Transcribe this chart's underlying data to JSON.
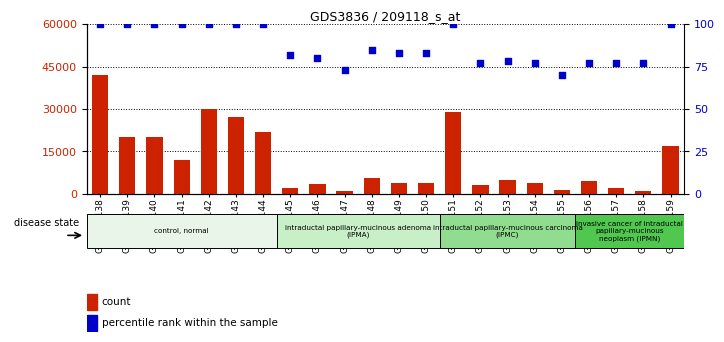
{
  "title": "GDS3836 / 209118_s_at",
  "samples": [
    "GSM490138",
    "GSM490139",
    "GSM490140",
    "GSM490141",
    "GSM490142",
    "GSM490143",
    "GSM490144",
    "GSM490145",
    "GSM490146",
    "GSM490147",
    "GSM490148",
    "GSM490149",
    "GSM490150",
    "GSM490151",
    "GSM490152",
    "GSM490153",
    "GSM490154",
    "GSM490155",
    "GSM490156",
    "GSM490157",
    "GSM490158",
    "GSM490159"
  ],
  "counts": [
    42000,
    20000,
    20000,
    12000,
    30000,
    27000,
    22000,
    2000,
    3500,
    1000,
    5500,
    4000,
    4000,
    29000,
    3000,
    5000,
    4000,
    1500,
    4500,
    2000,
    1000,
    17000
  ],
  "percentile": [
    100,
    100,
    100,
    100,
    100,
    100,
    100,
    82,
    80,
    73,
    85,
    83,
    83,
    100,
    77,
    78,
    77,
    70,
    77,
    77,
    77,
    100
  ],
  "bar_color": "#cc2200",
  "dot_color": "#0000cc",
  "ylim_left": [
    0,
    60000
  ],
  "ylim_right": [
    0,
    100
  ],
  "yticks_left": [
    0,
    15000,
    30000,
    45000,
    60000
  ],
  "yticks_right": [
    0,
    25,
    50,
    75,
    100
  ],
  "groups": [
    {
      "label": "control, normal",
      "start": 0,
      "end": 7,
      "color": "#e8f5e8"
    },
    {
      "label": "intraductal papillary-mucinous adenoma\n(IPMA)",
      "start": 7,
      "end": 13,
      "color": "#c8efc8"
    },
    {
      "label": "intraductal papillary-mucinous carcinoma\n(IPMC)",
      "start": 13,
      "end": 18,
      "color": "#90dd90"
    },
    {
      "label": "invasive cancer of intraductal\npapillary-mucinous\nneoplasm (IPMN)",
      "start": 18,
      "end": 22,
      "color": "#50c850"
    }
  ],
  "legend_count_label": "count",
  "legend_pct_label": "percentile rank within the sample",
  "disease_state_label": "disease state"
}
